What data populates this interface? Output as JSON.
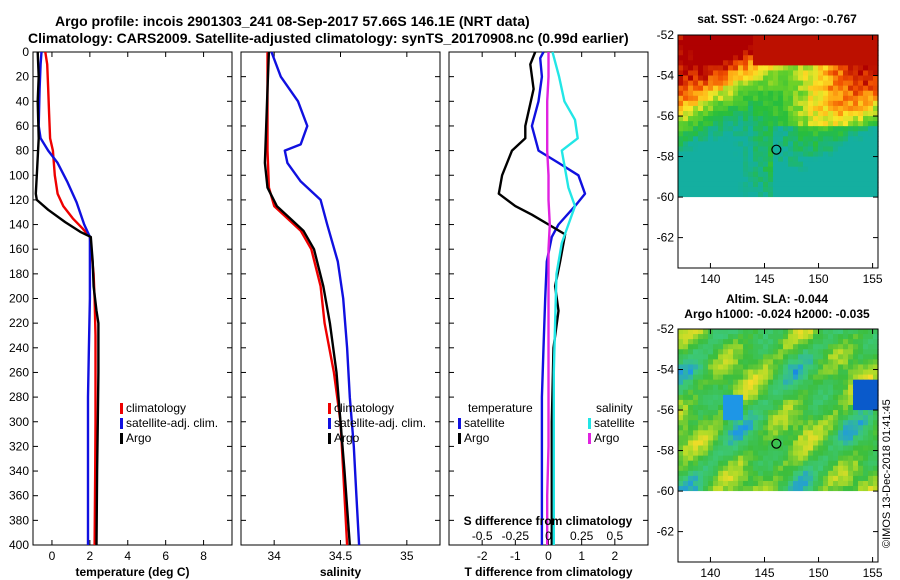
{
  "header": {
    "title_line1": "Argo profile: incois 2901303_241 08-Sep-2017 57.66S 146.1E (NRT data)",
    "title_line2": "Climatology: CARS2009. Satellite-adjusted climatology: synTS_20170908.nc (0.99d earlier)"
  },
  "credit": "©IMOS 13-Dec-2018 01:41:45",
  "colors": {
    "climatology": "#ee0000",
    "satellite": "#1010e0",
    "argo": "#000000",
    "sat_salinity": "#22e6e6",
    "clim_salinity_diff": "#e022e0"
  },
  "chart_data": [
    {
      "type": "line",
      "id": "temperature",
      "xlabel": "temperature (deg C)",
      "xlim": [
        -1,
        9.5
      ],
      "xticks": [
        0,
        2,
        4,
        6,
        8
      ],
      "ylim": [
        0,
        400
      ],
      "yticks": [
        0,
        20,
        40,
        60,
        80,
        100,
        120,
        140,
        160,
        180,
        200,
        220,
        240,
        260,
        280,
        300,
        320,
        340,
        360,
        380,
        400
      ],
      "legend": [
        "climatology",
        "satellite-adj. clim.",
        "Argo"
      ],
      "series": [
        {
          "name": "climatology",
          "color_key": "climatology",
          "points": [
            [
              -0.35,
              0
            ],
            [
              -0.25,
              10
            ],
            [
              -0.2,
              30
            ],
            [
              -0.15,
              50
            ],
            [
              -0.1,
              70
            ],
            [
              0.05,
              80
            ],
            [
              0.15,
              100
            ],
            [
              0.3,
              115
            ],
            [
              0.6,
              125
            ],
            [
              1.1,
              135
            ],
            [
              1.6,
              143
            ],
            [
              2.0,
              150
            ],
            [
              2.1,
              165
            ],
            [
              2.2,
              180
            ],
            [
              2.25,
              200
            ],
            [
              2.3,
              230
            ],
            [
              2.3,
              260
            ],
            [
              2.3,
              300
            ],
            [
              2.28,
              340
            ],
            [
              2.25,
              400
            ]
          ]
        },
        {
          "name": "satellite-adj. clim.",
          "color_key": "satellite",
          "points": [
            [
              -0.55,
              0
            ],
            [
              -0.6,
              10
            ],
            [
              -0.65,
              30
            ],
            [
              -0.7,
              60
            ],
            [
              -0.6,
              70
            ],
            [
              -0.2,
              80
            ],
            [
              0.3,
              90
            ],
            [
              0.8,
              105
            ],
            [
              1.3,
              122
            ],
            [
              1.7,
              140
            ],
            [
              2.0,
              150
            ],
            [
              2.0,
              180
            ],
            [
              2.0,
              200
            ],
            [
              1.95,
              240
            ],
            [
              1.9,
              280
            ],
            [
              1.9,
              320
            ],
            [
              1.9,
              360
            ],
            [
              1.9,
              400
            ]
          ]
        },
        {
          "name": "Argo",
          "color_key": "argo",
          "points": [
            [
              -0.75,
              0
            ],
            [
              -0.7,
              20
            ],
            [
              -0.75,
              40
            ],
            [
              -0.7,
              70
            ],
            [
              -0.8,
              100
            ],
            [
              -0.85,
              115
            ],
            [
              -0.8,
              120
            ],
            [
              -0.2,
              128
            ],
            [
              0.7,
              138
            ],
            [
              1.5,
              146
            ],
            [
              2.05,
              150
            ],
            [
              2.15,
              170
            ],
            [
              2.2,
              190
            ],
            [
              2.35,
              210
            ],
            [
              2.45,
              220
            ],
            [
              2.45,
              260
            ],
            [
              2.42,
              300
            ],
            [
              2.38,
              340
            ],
            [
              2.35,
              400
            ]
          ]
        }
      ]
    },
    {
      "type": "line",
      "id": "salinity",
      "xlabel": "salinity",
      "xlim": [
        33.75,
        35.25
      ],
      "xticks": [
        34,
        34.5,
        35
      ],
      "xtick_labels": [
        "34",
        "34.5",
        "35"
      ],
      "ylim": [
        0,
        400
      ],
      "legend": [
        "climatology",
        "satellite-adj. clim.",
        "Argo"
      ],
      "series": [
        {
          "name": "climatology",
          "color_key": "climatology",
          "points": [
            [
              33.95,
              0
            ],
            [
              33.95,
              40
            ],
            [
              33.95,
              80
            ],
            [
              33.96,
              110
            ],
            [
              34.0,
              125
            ],
            [
              34.1,
              135
            ],
            [
              34.2,
              145
            ],
            [
              34.28,
              160
            ],
            [
              34.35,
              190
            ],
            [
              34.38,
              220
            ],
            [
              34.45,
              260
            ],
            [
              34.5,
              300
            ],
            [
              34.52,
              340
            ],
            [
              34.55,
              400
            ]
          ]
        },
        {
          "name": "satellite-adj. clim.",
          "color_key": "satellite",
          "points": [
            [
              33.98,
              0
            ],
            [
              34.05,
              20
            ],
            [
              34.18,
              40
            ],
            [
              34.25,
              60
            ],
            [
              34.2,
              75
            ],
            [
              34.08,
              80
            ],
            [
              34.1,
              90
            ],
            [
              34.2,
              105
            ],
            [
              34.35,
              120
            ],
            [
              34.4,
              140
            ],
            [
              34.48,
              170
            ],
            [
              34.52,
              200
            ],
            [
              34.55,
              240
            ],
            [
              34.57,
              280
            ],
            [
              34.6,
              320
            ],
            [
              34.62,
              360
            ],
            [
              34.64,
              400
            ]
          ]
        },
        {
          "name": "Argo",
          "color_key": "argo",
          "points": [
            [
              33.96,
              0
            ],
            [
              33.95,
              30
            ],
            [
              33.94,
              60
            ],
            [
              33.93,
              90
            ],
            [
              33.95,
              110
            ],
            [
              34.02,
              125
            ],
            [
              34.12,
              135
            ],
            [
              34.22,
              145
            ],
            [
              34.3,
              160
            ],
            [
              34.37,
              190
            ],
            [
              34.42,
              220
            ],
            [
              34.47,
              260
            ],
            [
              34.5,
              300
            ],
            [
              34.53,
              340
            ],
            [
              34.57,
              400
            ]
          ]
        }
      ]
    },
    {
      "type": "line",
      "id": "difference",
      "xlabel": "T difference from climatology",
      "xlim": [
        -3,
        3
      ],
      "xticks": [
        -2,
        -1,
        0,
        1,
        2
      ],
      "xtick_labels": [
        "-2",
        "-1",
        "0",
        "1",
        "2"
      ],
      "x2label": "S difference from climatology",
      "x2ticks": [
        -0.5,
        -0.25,
        0,
        0.25,
        0.5
      ],
      "x2tick_labels": [
        "-0.5",
        "-0.25",
        "0",
        "0.25",
        "0.5"
      ],
      "x2lim": [
        -0.75,
        0.75
      ],
      "ylim": [
        0,
        400
      ],
      "legend_temperature": {
        "title": "temperature",
        "entries": [
          "satellite",
          "Argo"
        ]
      },
      "legend_salinity": {
        "title": "salinity",
        "entries": [
          "satellite",
          "Argo"
        ]
      },
      "series": [
        {
          "name": "T satellite",
          "color_key": "satellite",
          "points": [
            [
              -0.15,
              0
            ],
            [
              -0.25,
              5
            ],
            [
              -0.2,
              20
            ],
            [
              -0.3,
              40
            ],
            [
              -0.5,
              60
            ],
            [
              -0.3,
              80
            ],
            [
              0.3,
              90
            ],
            [
              0.9,
              100
            ],
            [
              1.1,
              115
            ],
            [
              0.8,
              125
            ],
            [
              0.3,
              140
            ],
            [
              0.1,
              150
            ],
            [
              -0.05,
              170
            ],
            [
              -0.1,
              200
            ],
            [
              -0.15,
              240
            ],
            [
              -0.2,
              280
            ],
            [
              -0.2,
              320
            ],
            [
              -0.2,
              360
            ],
            [
              -0.2,
              400
            ]
          ]
        },
        {
          "name": "T Argo",
          "color_key": "argo",
          "points": [
            [
              -0.4,
              0
            ],
            [
              -0.55,
              10
            ],
            [
              -0.45,
              30
            ],
            [
              -0.7,
              60
            ],
            [
              -0.7,
              70
            ],
            [
              -1.1,
              80
            ],
            [
              -1.4,
              100
            ],
            [
              -1.5,
              115
            ],
            [
              -1.0,
              125
            ],
            [
              -0.5,
              132
            ],
            [
              0.0,
              140
            ],
            [
              0.5,
              148
            ],
            [
              0.35,
              170
            ],
            [
              0.2,
              190
            ],
            [
              0.3,
              210
            ],
            [
              0.15,
              240
            ],
            [
              0.1,
              300
            ],
            [
              0.1,
              340
            ],
            [
              0.1,
              400
            ]
          ]
        },
        {
          "name": "S satellite",
          "color_key": "sat_salinity",
          "points": [
            [
              0.03,
              0
            ],
            [
              0.08,
              20
            ],
            [
              0.12,
              40
            ],
            [
              0.2,
              55
            ],
            [
              0.22,
              70
            ],
            [
              0.1,
              80
            ],
            [
              0.15,
              110
            ],
            [
              0.2,
              125
            ],
            [
              0.15,
              140
            ],
            [
              0.1,
              155
            ],
            [
              0.06,
              180
            ],
            [
              0.05,
              220
            ],
            [
              0.04,
              260
            ],
            [
              0.04,
              300
            ],
            [
              0.04,
              340
            ],
            [
              0.04,
              400
            ]
          ]
        },
        {
          "name": "S Argo",
          "color_key": "clim_salinity_diff",
          "points": [
            [
              0.0,
              0
            ],
            [
              0.0,
              20
            ],
            [
              -0.01,
              40
            ],
            [
              -0.01,
              60
            ],
            [
              -0.01,
              80
            ],
            [
              0.0,
              100
            ],
            [
              0.0,
              120
            ],
            [
              0.01,
              140
            ],
            [
              0.0,
              160
            ],
            [
              0.0,
              200
            ],
            [
              0.0,
              240
            ],
            [
              0.0,
              280
            ],
            [
              0.0,
              320
            ],
            [
              -0.01,
              360
            ],
            [
              -0.01,
              400
            ]
          ]
        }
      ]
    },
    {
      "type": "heatmap",
      "id": "sst_map",
      "title": "sat. SST: -0.624 Argo: -0.767",
      "xlim": [
        137,
        155.5
      ],
      "ylim": [
        -63.5,
        -52
      ],
      "xticks": [
        140,
        145,
        150,
        155
      ],
      "yticks": [
        -52,
        -54,
        -56,
        -58,
        -60,
        -62
      ],
      "data_ylim": [
        -60,
        -52
      ],
      "marker": {
        "lon": 146.1,
        "lat": -57.66
      }
    },
    {
      "type": "heatmap",
      "id": "sla_map",
      "title": "Altim. SLA: -0.044",
      "subtitle": "Argo h1000: -0.024 h2000: -0.035",
      "xlim": [
        137,
        155.5
      ],
      "ylim": [
        -63.5,
        -52
      ],
      "xticks": [
        140,
        145,
        150,
        155
      ],
      "yticks": [
        -52,
        -54,
        -56,
        -58,
        -60,
        -62
      ],
      "data_ylim": [
        -60,
        -52
      ],
      "marker": {
        "lon": 146.1,
        "lat": -57.66
      }
    }
  ]
}
